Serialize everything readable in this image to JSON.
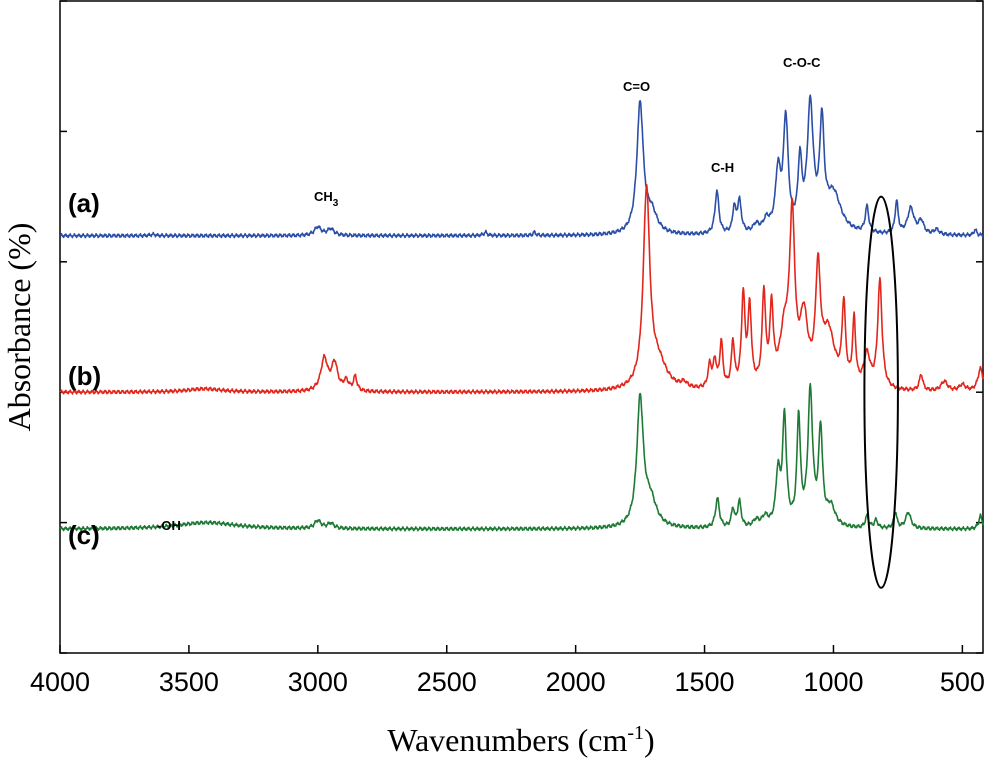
{
  "chart_data": {
    "type": "line",
    "title": "",
    "xlabel": "Wavenumbers (cm-1)",
    "xlabel_main": "Wavenumbers (cm",
    "xlabel_sup": "-1",
    "xlabel_close": ")",
    "ylabel": "Absorbance (%)",
    "xlim": [
      4000,
      420
    ],
    "x_reversed": true,
    "xticks": [
      4000,
      3500,
      3000,
      2500,
      2000,
      1500,
      1000,
      500
    ],
    "xtick_labels": [
      "4000",
      "3500",
      "3000",
      "2500",
      "2000",
      "1500",
      "1000",
      "500"
    ],
    "y_units": "arbitrary (stacked, offset)",
    "ylim": [
      0,
      100
    ],
    "yticks": [
      0,
      20,
      40,
      60,
      80,
      100
    ],
    "y_tick_labels_shown": false,
    "grid": false,
    "series": [
      {
        "name": "(a)",
        "color": "#2b4fa6",
        "baseline": 64,
        "peaks": [
          {
            "x": 3640,
            "h": 0.2,
            "w": 12
          },
          {
            "x": 3000,
            "h": 1.3,
            "w": 16
          },
          {
            "x": 2950,
            "h": 1.0,
            "w": 16
          },
          {
            "x": 2350,
            "h": 0.5,
            "w": 8
          },
          {
            "x": 2160,
            "h": 0.5,
            "w": 6
          },
          {
            "x": 1750,
            "h": 20.0,
            "w": 15
          },
          {
            "x": 1705,
            "h": 3.0,
            "w": 25
          },
          {
            "x": 1452,
            "h": 6.6,
            "w": 9
          },
          {
            "x": 1385,
            "h": 3.8,
            "w": 7
          },
          {
            "x": 1365,
            "h": 5.0,
            "w": 9
          },
          {
            "x": 1300,
            "h": 1.2,
            "w": 14
          },
          {
            "x": 1260,
            "h": 1.8,
            "w": 15
          },
          {
            "x": 1215,
            "h": 9.0,
            "w": 12
          },
          {
            "x": 1185,
            "h": 17.0,
            "w": 11
          },
          {
            "x": 1130,
            "h": 10.0,
            "w": 9
          },
          {
            "x": 1090,
            "h": 19.0,
            "w": 14
          },
          {
            "x": 1045,
            "h": 15.5,
            "w": 10
          },
          {
            "x": 1000,
            "h": 6.0,
            "w": 35
          },
          {
            "x": 870,
            "h": 4.0,
            "w": 8
          },
          {
            "x": 755,
            "h": 5.0,
            "w": 7
          },
          {
            "x": 700,
            "h": 4.0,
            "w": 15
          },
          {
            "x": 660,
            "h": 2.0,
            "w": 12
          },
          {
            "x": 600,
            "h": 0.8,
            "w": 12
          },
          {
            "x": 450,
            "h": 0.9,
            "w": 6
          }
        ]
      },
      {
        "name": "(b)",
        "color": "#e3261c",
        "baseline": 40,
        "peaks": [
          {
            "x": 3440,
            "h": 0.5,
            "w": 80
          },
          {
            "x": 2975,
            "h": 5.0,
            "w": 16
          },
          {
            "x": 2935,
            "h": 4.2,
            "w": 14
          },
          {
            "x": 2890,
            "h": 1.5,
            "w": 12
          },
          {
            "x": 2855,
            "h": 2.2,
            "w": 8
          },
          {
            "x": 1580,
            "h": 0.8,
            "w": 15
          },
          {
            "x": 1725,
            "h": 30.0,
            "w": 15
          },
          {
            "x": 1680,
            "h": 4.0,
            "w": 40
          },
          {
            "x": 1480,
            "h": 3.5,
            "w": 8
          },
          {
            "x": 1460,
            "h": 4.0,
            "w": 8
          },
          {
            "x": 1435,
            "h": 7.0,
            "w": 7
          },
          {
            "x": 1390,
            "h": 7.0,
            "w": 7
          },
          {
            "x": 1350,
            "h": 14.0,
            "w": 8
          },
          {
            "x": 1325,
            "h": 12.0,
            "w": 8
          },
          {
            "x": 1270,
            "h": 14.0,
            "w": 8
          },
          {
            "x": 1240,
            "h": 11.5,
            "w": 8
          },
          {
            "x": 1190,
            "h": 8.0,
            "w": 22
          },
          {
            "x": 1160,
            "h": 24.5,
            "w": 12
          },
          {
            "x": 1115,
            "h": 10.0,
            "w": 18
          },
          {
            "x": 1060,
            "h": 16.5,
            "w": 11
          },
          {
            "x": 1020,
            "h": 8.5,
            "w": 30
          },
          {
            "x": 960,
            "h": 12.0,
            "w": 8
          },
          {
            "x": 920,
            "h": 10.0,
            "w": 7
          },
          {
            "x": 870,
            "h": 5.0,
            "w": 15
          },
          {
            "x": 820,
            "h": 16.5,
            "w": 10
          },
          {
            "x": 660,
            "h": 2.5,
            "w": 8
          },
          {
            "x": 570,
            "h": 1.5,
            "w": 15
          },
          {
            "x": 500,
            "h": 1.0,
            "w": 15
          },
          {
            "x": 430,
            "h": 3.5,
            "w": 12
          }
        ]
      },
      {
        "name": "(c)",
        "color": "#1f7a35",
        "baseline": 19,
        "peaks": [
          {
            "x": 3430,
            "h": 1.0,
            "w": 140
          },
          {
            "x": 3000,
            "h": 1.2,
            "w": 15
          },
          {
            "x": 2950,
            "h": 0.8,
            "w": 15
          },
          {
            "x": 1750,
            "h": 19.5,
            "w": 15
          },
          {
            "x": 1710,
            "h": 4.0,
            "w": 28
          },
          {
            "x": 1450,
            "h": 4.5,
            "w": 9
          },
          {
            "x": 1390,
            "h": 2.8,
            "w": 7
          },
          {
            "x": 1365,
            "h": 4.0,
            "w": 8
          },
          {
            "x": 1300,
            "h": 1.0,
            "w": 14
          },
          {
            "x": 1265,
            "h": 1.5,
            "w": 15
          },
          {
            "x": 1215,
            "h": 8.0,
            "w": 10
          },
          {
            "x": 1190,
            "h": 16.5,
            "w": 9
          },
          {
            "x": 1135,
            "h": 16.5,
            "w": 8
          },
          {
            "x": 1090,
            "h": 20.5,
            "w": 11
          },
          {
            "x": 1050,
            "h": 14.5,
            "w": 9
          },
          {
            "x": 1010,
            "h": 3.0,
            "w": 20
          },
          {
            "x": 870,
            "h": 1.8,
            "w": 8
          },
          {
            "x": 835,
            "h": 1.2,
            "w": 8
          },
          {
            "x": 760,
            "h": 2.5,
            "w": 7
          },
          {
            "x": 710,
            "h": 2.5,
            "w": 12
          },
          {
            "x": 430,
            "h": 2.0,
            "w": 8
          }
        ]
      }
    ],
    "annotations": {
      "series_tags": [
        "(a)",
        "(b)",
        "(c)"
      ],
      "peak_labels": [
        {
          "main": "CH",
          "sub": "3"
        },
        {
          "main": "C=O",
          "sub": ""
        },
        {
          "main": "C-H",
          "sub": ""
        },
        {
          "main": "C-O-C",
          "sub": ""
        },
        {
          "main": "-OH",
          "sub": ""
        }
      ],
      "highlight_region": {
        "center_x": 815,
        "half_width": 65,
        "y_range": [
          10,
          70
        ]
      }
    }
  }
}
